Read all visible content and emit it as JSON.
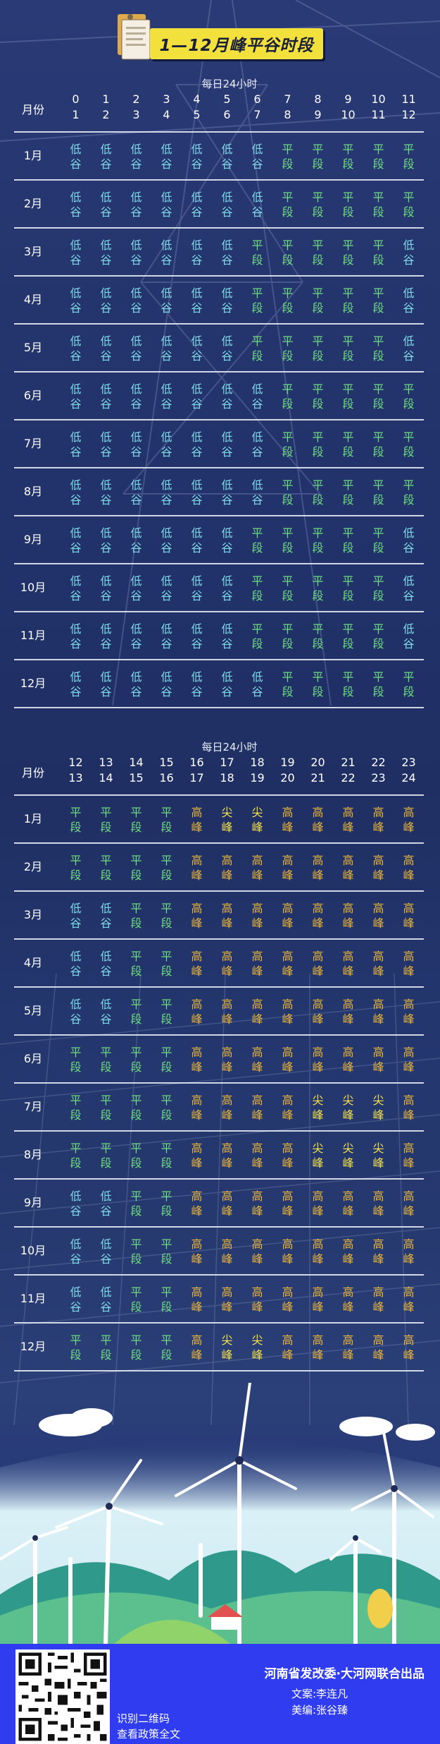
{
  "title": "1—12月峰平谷时段",
  "colors": {
    "low": "#7fd8e8",
    "flat": "#6fdc82",
    "high": "#e9b53a",
    "peak": "#f5e24a",
    "footer": "#2f3cf0"
  },
  "top_table": {
    "daily_label": "每日24小时",
    "month_header": "月份",
    "hours": [
      [
        "0",
        "1"
      ],
      [
        "1",
        "2"
      ],
      [
        "2",
        "3"
      ],
      [
        "3",
        "4"
      ],
      [
        "4",
        "5"
      ],
      [
        "5",
        "6"
      ],
      [
        "6",
        "7"
      ],
      [
        "7",
        "8"
      ],
      [
        "8",
        "9"
      ],
      [
        "9",
        "10"
      ],
      [
        "10",
        "11"
      ],
      [
        "11",
        "12"
      ]
    ],
    "rows": [
      {
        "month": "1月",
        "cells": [
          "low",
          "low",
          "low",
          "low",
          "low",
          "low",
          "low",
          "flat",
          "flat",
          "flat",
          "flat",
          "flat"
        ]
      },
      {
        "month": "2月",
        "cells": [
          "low",
          "low",
          "low",
          "low",
          "low",
          "low",
          "low",
          "flat",
          "flat",
          "flat",
          "flat",
          "flat"
        ]
      },
      {
        "month": "3月",
        "cells": [
          "low",
          "low",
          "low",
          "low",
          "low",
          "low",
          "flat",
          "flat",
          "flat",
          "flat",
          "flat",
          "low"
        ]
      },
      {
        "month": "4月",
        "cells": [
          "low",
          "low",
          "low",
          "low",
          "low",
          "low",
          "flat",
          "flat",
          "flat",
          "flat",
          "flat",
          "low"
        ]
      },
      {
        "month": "5月",
        "cells": [
          "low",
          "low",
          "low",
          "low",
          "low",
          "low",
          "flat",
          "flat",
          "flat",
          "flat",
          "flat",
          "low"
        ]
      },
      {
        "month": "6月",
        "cells": [
          "low",
          "low",
          "low",
          "low",
          "low",
          "low",
          "low",
          "flat",
          "flat",
          "flat",
          "flat",
          "flat"
        ]
      },
      {
        "month": "7月",
        "cells": [
          "low",
          "low",
          "low",
          "low",
          "low",
          "low",
          "low",
          "flat",
          "flat",
          "flat",
          "flat",
          "flat"
        ]
      },
      {
        "month": "8月",
        "cells": [
          "low",
          "low",
          "low",
          "low",
          "low",
          "low",
          "low",
          "flat",
          "flat",
          "flat",
          "flat",
          "flat"
        ]
      },
      {
        "month": "9月",
        "cells": [
          "low",
          "low",
          "low",
          "low",
          "low",
          "low",
          "flat",
          "flat",
          "flat",
          "flat",
          "flat",
          "low"
        ]
      },
      {
        "month": "10月",
        "cells": [
          "low",
          "low",
          "low",
          "low",
          "low",
          "low",
          "flat",
          "flat",
          "flat",
          "flat",
          "flat",
          "low"
        ]
      },
      {
        "month": "11月",
        "cells": [
          "low",
          "low",
          "low",
          "low",
          "low",
          "low",
          "flat",
          "flat",
          "flat",
          "flat",
          "flat",
          "low"
        ]
      },
      {
        "month": "12月",
        "cells": [
          "low",
          "low",
          "low",
          "low",
          "low",
          "low",
          "low",
          "flat",
          "flat",
          "flat",
          "flat",
          "flat"
        ]
      }
    ]
  },
  "bottom_table": {
    "daily_label": "每日24小时",
    "month_header": "月份",
    "hours": [
      [
        "12",
        "13"
      ],
      [
        "13",
        "14"
      ],
      [
        "14",
        "15"
      ],
      [
        "15",
        "16"
      ],
      [
        "16",
        "17"
      ],
      [
        "17",
        "18"
      ],
      [
        "18",
        "19"
      ],
      [
        "19",
        "20"
      ],
      [
        "20",
        "21"
      ],
      [
        "21",
        "22"
      ],
      [
        "22",
        "23"
      ],
      [
        "23",
        "24"
      ]
    ],
    "rows": [
      {
        "month": "1月",
        "cells": [
          "flat",
          "flat",
          "flat",
          "flat",
          "high",
          "peak",
          "peak",
          "high",
          "high",
          "high",
          "high",
          "high"
        ]
      },
      {
        "month": "2月",
        "cells": [
          "flat",
          "flat",
          "flat",
          "flat",
          "high",
          "high",
          "high",
          "high",
          "high",
          "high",
          "high",
          "high"
        ]
      },
      {
        "month": "3月",
        "cells": [
          "low",
          "low",
          "flat",
          "flat",
          "high",
          "high",
          "high",
          "high",
          "high",
          "high",
          "high",
          "high"
        ]
      },
      {
        "month": "4月",
        "cells": [
          "low",
          "low",
          "flat",
          "flat",
          "high",
          "high",
          "high",
          "high",
          "high",
          "high",
          "high",
          "high"
        ]
      },
      {
        "month": "5月",
        "cells": [
          "low",
          "low",
          "flat",
          "flat",
          "high",
          "high",
          "high",
          "high",
          "high",
          "high",
          "high",
          "high"
        ]
      },
      {
        "month": "6月",
        "cells": [
          "flat",
          "flat",
          "flat",
          "flat",
          "high",
          "high",
          "high",
          "high",
          "high",
          "high",
          "high",
          "high"
        ]
      },
      {
        "month": "7月",
        "cells": [
          "flat",
          "flat",
          "flat",
          "flat",
          "high",
          "high",
          "high",
          "high",
          "peak",
          "peak",
          "peak",
          "high"
        ]
      },
      {
        "month": "8月",
        "cells": [
          "flat",
          "flat",
          "flat",
          "flat",
          "high",
          "high",
          "high",
          "high",
          "peak",
          "peak",
          "peak",
          "high"
        ]
      },
      {
        "month": "9月",
        "cells": [
          "low",
          "low",
          "flat",
          "flat",
          "high",
          "high",
          "high",
          "high",
          "high",
          "high",
          "high",
          "high"
        ]
      },
      {
        "month": "10月",
        "cells": [
          "low",
          "low",
          "flat",
          "flat",
          "high",
          "high",
          "high",
          "high",
          "high",
          "high",
          "high",
          "high"
        ]
      },
      {
        "month": "11月",
        "cells": [
          "low",
          "low",
          "flat",
          "flat",
          "high",
          "high",
          "high",
          "high",
          "high",
          "high",
          "high",
          "high"
        ]
      },
      {
        "month": "12月",
        "cells": [
          "flat",
          "flat",
          "flat",
          "flat",
          "high",
          "peak",
          "peak",
          "high",
          "high",
          "high",
          "high",
          "high"
        ]
      }
    ]
  },
  "labels": {
    "low": [
      "低",
      "谷"
    ],
    "flat": [
      "平",
      "段"
    ],
    "high": [
      "高",
      "峰"
    ],
    "peak": [
      "尖",
      "峰"
    ]
  },
  "footer": {
    "qr_caption_1": "识别二维码",
    "qr_caption_2": "查看政策全文",
    "credit_main": "河南省发改委·大河网联合出品",
    "credit_writer": "文案:李连凡",
    "credit_designer": "美编:张谷臻"
  }
}
